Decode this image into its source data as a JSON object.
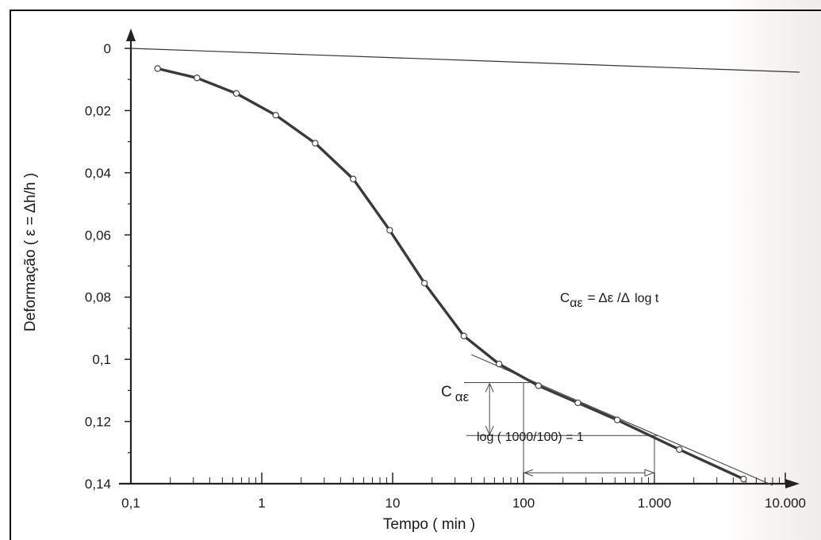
{
  "chart_data": {
    "type": "line",
    "title": "",
    "xlabel": "Tempo ( min )",
    "ylabel": "Deformação ( ε = Δh/h )",
    "x_scale": "log",
    "xlim": [
      0.1,
      10000
    ],
    "ylim": [
      0,
      0.14
    ],
    "y_inverted": true,
    "grid": false,
    "x_ticks": [
      {
        "value": 0.1,
        "label": "0,1"
      },
      {
        "value": 1,
        "label": "1"
      },
      {
        "value": 10,
        "label": "10"
      },
      {
        "value": 100,
        "label": "100"
      },
      {
        "value": 1000,
        "label": "1.000"
      },
      {
        "value": 10000,
        "label": "10.000"
      }
    ],
    "y_ticks": [
      {
        "value": 0,
        "label": "0"
      },
      {
        "value": 0.02,
        "label": "0,02"
      },
      {
        "value": 0.04,
        "label": "0,04"
      },
      {
        "value": 0.06,
        "label": "0,06"
      },
      {
        "value": 0.08,
        "label": "0,08"
      },
      {
        "value": 0.1,
        "label": "0,1"
      },
      {
        "value": 0.12,
        "label": "0,12"
      },
      {
        "value": 0.14,
        "label": "0,14"
      }
    ],
    "series": [
      {
        "x": [
          0.16,
          0.32,
          0.64,
          1.28,
          2.56,
          5,
          9.5,
          17.5,
          35,
          65,
          130,
          260,
          520,
          1550,
          4800
        ],
        "y": [
          0.0065,
          0.0095,
          0.0145,
          0.0215,
          0.0305,
          0.042,
          0.0585,
          0.0755,
          0.0925,
          0.1015,
          0.1085,
          0.114,
          0.1195,
          0.129,
          0.1385
        ]
      }
    ],
    "tangent_line": {
      "x": [
        40,
        8000
      ],
      "y": [
        0.0985,
        0.1405
      ]
    },
    "annotations": {
      "formula": {
        "lhs": "C",
        "lhs_sub": "αε",
        "rhs_main": "= Δε /Δ",
        "rhs_small": "log t"
      },
      "c_label": {
        "main": "C",
        "sub": "αε"
      },
      "c_bracket": {
        "x": 55,
        "y_top": 0.1075,
        "y_bottom": 0.1245
      },
      "ref_lines": {
        "x_low": 100,
        "x_high": 1000,
        "y_top": 0.1075,
        "y_bottom": 0.1245
      },
      "log_text": "log ( 1000/100) = 1",
      "log_arrow": {
        "x": [
          100,
          1000
        ],
        "y": 0.1365
      }
    }
  }
}
